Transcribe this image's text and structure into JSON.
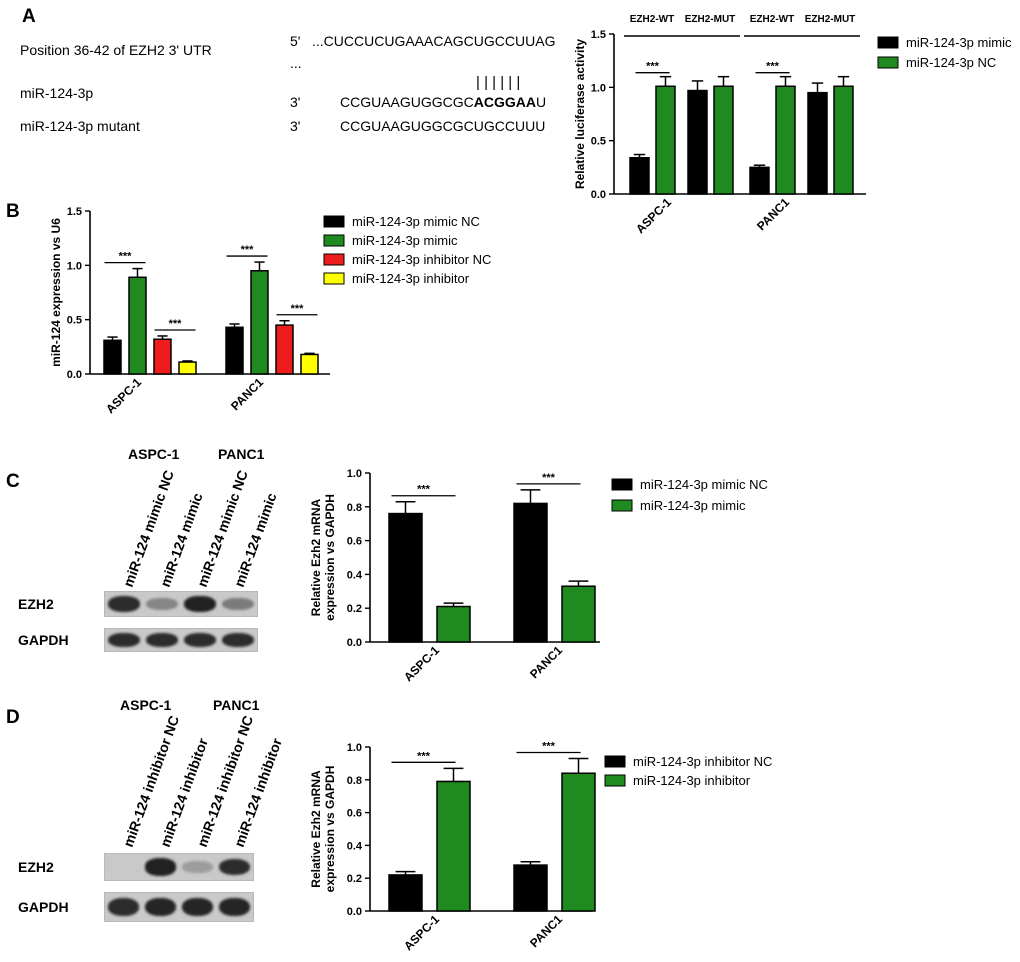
{
  "panels": [
    {
      "letter": "A",
      "sequence_alignment": {
        "rows": [
          {
            "label": "Position 36-42 of EZH2 3' UTR",
            "prime": "5'",
            "seq": "...CUCCUCUGAAACAGCUGCCUUAG"
          },
          {
            "label": "",
            "prime": "",
            "seq": "..."
          },
          {
            "label": "",
            "prime": "",
            "seq": "| | | | | |"
          },
          {
            "label": "miR-124-3p",
            "prime": "3'",
            "seq_plain": "CCGUAAGUGGCGC",
            "seq_bold": "ACGGAA",
            "seq_tail": "U"
          },
          {
            "label": "miR-124-3p mutant",
            "prime": "3'",
            "seq": "CCGUAAGUGGCGCUGCCUUU"
          }
        ]
      }
    },
    {
      "letter": "B"
    },
    {
      "letter": "C",
      "blot": {
        "cell_lines": [
          "ASPC-1",
          "PANC1"
        ],
        "lanes": [
          "miR-124 mimic NC",
          "miR-124 mimic",
          "miR-124 mimic NC",
          "miR-124 mimic"
        ],
        "rows": [
          {
            "label": "EZH2",
            "intensity": [
              0.85,
              0.45,
              0.9,
              0.5
            ]
          },
          {
            "label": "GAPDH",
            "intensity": [
              0.85,
              0.85,
              0.85,
              0.85
            ]
          }
        ]
      }
    },
    {
      "letter": "D",
      "blot": {
        "cell_lines": [
          "ASPC-1",
          "PANC1"
        ],
        "lanes": [
          "miR-124 inhibitor NC",
          "miR-124 inhibitor",
          "miR-124 inhibitor NC",
          "miR-124 inhibitor"
        ],
        "rows": [
          {
            "label": "EZH2",
            "intensity": [
              0.15,
              0.9,
              0.35,
              0.85
            ]
          },
          {
            "label": "GAPDH",
            "intensity": [
              0.85,
              0.88,
              0.88,
              0.88
            ]
          }
        ]
      }
    }
  ],
  "chart_data": [
    {
      "id": "A",
      "type": "bar",
      "ylabel": "Relative luciferase activity",
      "ylim": [
        0,
        1.5
      ],
      "yticks": [
        "0.0",
        "0.5",
        "1.0",
        "1.5"
      ],
      "groups": [
        "ASPC-1",
        "PANC1"
      ],
      "subgroups": [
        "EZH2-WT",
        "EZH2-MUT"
      ],
      "series": [
        {
          "name": "miR-124-3p mimic",
          "color": "#000000",
          "values": [
            0.34,
            0.97,
            0.25,
            0.95
          ],
          "errors": [
            0.03,
            0.09,
            0.02,
            0.09
          ]
        },
        {
          "name": "miR-124-3p NC",
          "color": "#1f8a1f",
          "values": [
            1.01,
            1.01,
            1.01,
            1.01
          ],
          "errors": [
            0.09,
            0.09,
            0.09,
            0.09
          ]
        }
      ],
      "significance": [
        {
          "subgroup": 0,
          "label": "***"
        },
        {
          "subgroup": 2,
          "label": "***"
        }
      ],
      "legend_position": "top-right"
    },
    {
      "id": "B",
      "type": "bar",
      "ylabel": "miR-124 expression vs U6",
      "ylim": [
        0,
        1.5
      ],
      "yticks": [
        "0.0",
        "0.5",
        "1.0",
        "1.5"
      ],
      "categories": [
        "ASPC-1",
        "PANC1"
      ],
      "series": [
        {
          "name": "miR-124-3p mimic NC",
          "color": "#000000",
          "values": [
            0.31,
            0.43
          ],
          "errors": [
            0.03,
            0.03
          ]
        },
        {
          "name": "miR-124-3p mimic",
          "color": "#1f8a1f",
          "values": [
            0.89,
            0.95
          ],
          "errors": [
            0.08,
            0.08
          ]
        },
        {
          "name": "miR-124-3p inhibitor NC",
          "color": "#ee1c1c",
          "values": [
            0.32,
            0.45
          ],
          "errors": [
            0.03,
            0.04
          ]
        },
        {
          "name": "miR-124-3p inhibitor",
          "color": "#ffff00",
          "values": [
            0.11,
            0.18
          ],
          "errors": [
            0.01,
            0.01
          ]
        }
      ],
      "significance": [
        {
          "category": 0,
          "from": 0,
          "to": 1,
          "label": "***"
        },
        {
          "category": 0,
          "from": 2,
          "to": 3,
          "label": "***"
        },
        {
          "category": 1,
          "from": 0,
          "to": 1,
          "label": "***"
        },
        {
          "category": 1,
          "from": 2,
          "to": 3,
          "label": "***"
        }
      ],
      "legend_position": "right"
    },
    {
      "id": "C",
      "type": "bar",
      "ylabel": "Relative Ezh2 mRNA expression vs GAPDH",
      "ylim": [
        0,
        1.0
      ],
      "yticks": [
        "0.0",
        "0.2",
        "0.4",
        "0.6",
        "0.8",
        "1.0"
      ],
      "categories": [
        "ASPC-1",
        "PANC1"
      ],
      "series": [
        {
          "name": "miR-124-3p mimic NC",
          "color": "#000000",
          "values": [
            0.76,
            0.82
          ],
          "errors": [
            0.07,
            0.08
          ]
        },
        {
          "name": "miR-124-3p mimic",
          "color": "#1f8a1f",
          "values": [
            0.21,
            0.33
          ],
          "errors": [
            0.02,
            0.03
          ]
        }
      ],
      "significance": [
        {
          "category": 0,
          "label": "***"
        },
        {
          "category": 1,
          "label": "***"
        }
      ],
      "legend_position": "right"
    },
    {
      "id": "D",
      "type": "bar",
      "ylabel": "Relative Ezh2 mRNA expression vs GAPDH",
      "ylim": [
        0,
        1.0
      ],
      "yticks": [
        "0.0",
        "0.2",
        "0.4",
        "0.6",
        "0.8",
        "1.0"
      ],
      "categories": [
        "ASPC-1",
        "PANC1"
      ],
      "series": [
        {
          "name": "miR-124-3p inhibitor NC",
          "color": "#000000",
          "values": [
            0.22,
            0.28
          ],
          "errors": [
            0.02,
            0.02
          ]
        },
        {
          "name": "miR-124-3p inhibitor",
          "color": "#1f8a1f",
          "values": [
            0.79,
            0.84
          ],
          "errors": [
            0.08,
            0.09
          ]
        }
      ],
      "significance": [
        {
          "category": 0,
          "label": "***"
        },
        {
          "category": 1,
          "label": "***"
        }
      ],
      "legend_position": "right"
    }
  ]
}
